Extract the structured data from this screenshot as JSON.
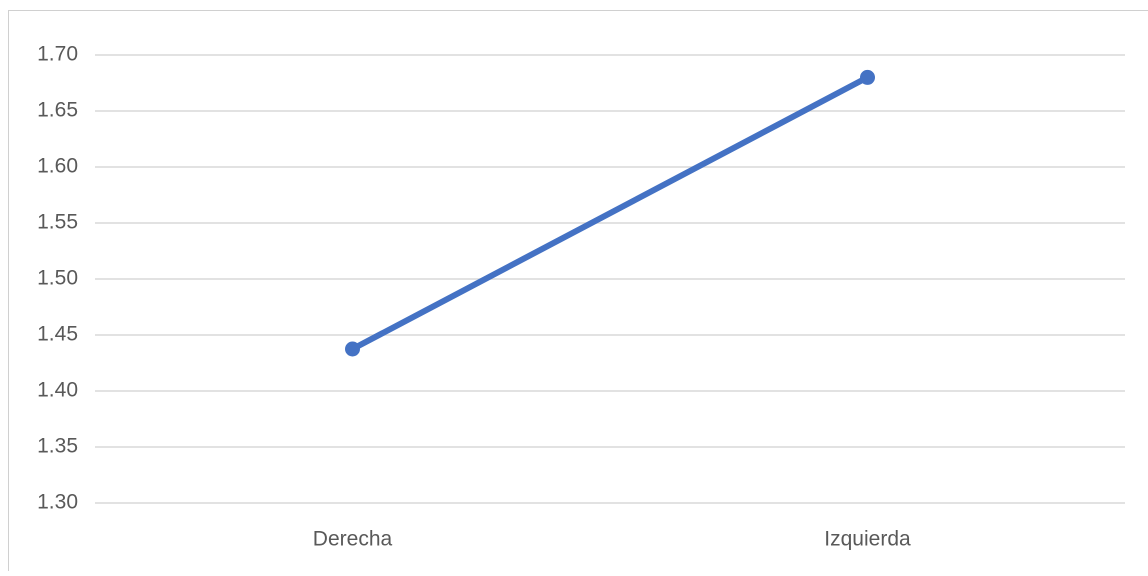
{
  "chart_data": {
    "type": "line",
    "categories": [
      "Derecha",
      "Izquierda"
    ],
    "series": [
      {
        "name": null,
        "color": "#4472c4",
        "values": [
          1.4375,
          1.68
        ]
      }
    ],
    "ylim": [
      1.3,
      1.7
    ],
    "yticks": [
      {
        "value": 1.3,
        "label": "1.30"
      },
      {
        "value": 1.35,
        "label": "1.35"
      },
      {
        "value": 1.4,
        "label": "1.40"
      },
      {
        "value": 1.45,
        "label": "1.45"
      },
      {
        "value": 1.5,
        "label": "1.50"
      },
      {
        "value": 1.55,
        "label": "1.55"
      },
      {
        "value": 1.6,
        "label": "1.60"
      },
      {
        "value": 1.65,
        "label": "1.65"
      },
      {
        "value": 1.7,
        "label": "1.70"
      }
    ],
    "grid": true
  }
}
